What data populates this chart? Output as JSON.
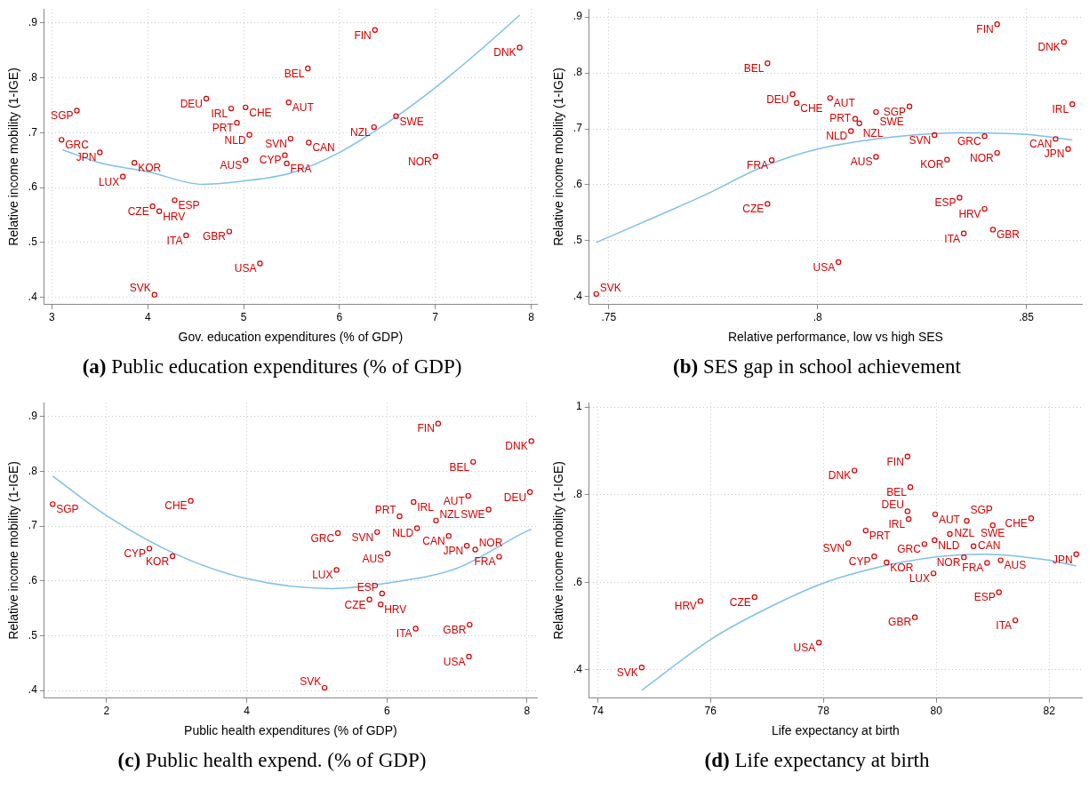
{
  "chart_data": [
    {
      "type": "scatter",
      "title": "(a) Public education expenditures (% of GDP)",
      "xlabel": "Gov. education expenditures (% of GDP)",
      "ylabel": "Relative income mobility (1-IGE)",
      "xlim": [
        2.92,
        8.06
      ],
      "ylim": [
        0.387,
        0.925
      ],
      "xticks": [
        3,
        4,
        5,
        6,
        7,
        8
      ],
      "yticks": [
        {
          "value": 0.4,
          "label": ".4"
        },
        {
          "value": 0.5,
          "label": ".5"
        },
        {
          "value": 0.6,
          "label": ".6"
        },
        {
          "value": 0.7,
          "label": ".7"
        },
        {
          "value": 0.8,
          "label": ".8"
        },
        {
          "value": 0.9,
          "label": ".9"
        }
      ],
      "grid": true,
      "legend": false,
      "marker": "circle",
      "series": [
        {
          "name": "FIN",
          "color": "#d40000",
          "x": [
            6.37
          ],
          "values": [
            0.887
          ]
        },
        {
          "name": "DNK",
          "color": "#d40000",
          "x": [
            7.88
          ],
          "values": [
            0.855
          ]
        },
        {
          "name": "BEL",
          "color": "#d40000",
          "x": [
            5.67
          ],
          "values": [
            0.817
          ]
        },
        {
          "name": "DEU",
          "color": "#d40000",
          "x": [
            4.61
          ],
          "values": [
            0.762
          ]
        },
        {
          "name": "IRL",
          "color": "#d40000",
          "x": [
            4.87
          ],
          "values": [
            0.744
          ]
        },
        {
          "name": "CHE",
          "color": "#d40000",
          "x": [
            5.02
          ],
          "values": [
            0.746
          ]
        },
        {
          "name": "AUT",
          "color": "#d40000",
          "x": [
            5.47
          ],
          "values": [
            0.755
          ]
        },
        {
          "name": "SGP",
          "color": "#d40000",
          "x": [
            3.26
          ],
          "values": [
            0.74
          ]
        },
        {
          "name": "SWE",
          "color": "#d40000",
          "x": [
            6.59
          ],
          "values": [
            0.73
          ]
        },
        {
          "name": "PRT",
          "color": "#d40000",
          "x": [
            4.93
          ],
          "values": [
            0.718
          ]
        },
        {
          "name": "NZL",
          "color": "#d40000",
          "x": [
            6.36
          ],
          "values": [
            0.71
          ]
        },
        {
          "name": "NLD",
          "color": "#d40000",
          "x": [
            5.06
          ],
          "values": [
            0.696
          ]
        },
        {
          "name": "SVN",
          "color": "#d40000",
          "x": [
            5.49
          ],
          "values": [
            0.689
          ]
        },
        {
          "name": "GRC",
          "color": "#d40000",
          "x": [
            3.1
          ],
          "values": [
            0.687
          ]
        },
        {
          "name": "CAN",
          "color": "#d40000",
          "x": [
            5.68
          ],
          "values": [
            0.682
          ]
        },
        {
          "name": "JPN",
          "color": "#d40000",
          "x": [
            3.5
          ],
          "values": [
            0.664
          ]
        },
        {
          "name": "CYP",
          "color": "#d40000",
          "x": [
            5.43
          ],
          "values": [
            0.659
          ]
        },
        {
          "name": "NOR",
          "color": "#d40000",
          "x": [
            7.0
          ],
          "values": [
            0.657
          ]
        },
        {
          "name": "AUS",
          "color": "#d40000",
          "x": [
            5.02
          ],
          "values": [
            0.65
          ]
        },
        {
          "name": "KOR",
          "color": "#d40000",
          "x": [
            3.86
          ],
          "values": [
            0.645
          ]
        },
        {
          "name": "FRA",
          "color": "#d40000",
          "x": [
            5.45
          ],
          "values": [
            0.644
          ]
        },
        {
          "name": "LUX",
          "color": "#d40000",
          "x": [
            3.74
          ],
          "values": [
            0.62
          ]
        },
        {
          "name": "ESP",
          "color": "#d40000",
          "x": [
            4.28
          ],
          "values": [
            0.577
          ]
        },
        {
          "name": "CZE",
          "color": "#d40000",
          "x": [
            4.05
          ],
          "values": [
            0.566
          ]
        },
        {
          "name": "HRV",
          "color": "#d40000",
          "x": [
            4.12
          ],
          "values": [
            0.557
          ]
        },
        {
          "name": "GBR",
          "color": "#d40000",
          "x": [
            4.85
          ],
          "values": [
            0.52
          ]
        },
        {
          "name": "ITA",
          "color": "#d40000",
          "x": [
            4.4
          ],
          "values": [
            0.513
          ]
        },
        {
          "name": "USA",
          "color": "#d40000",
          "x": [
            5.17
          ],
          "values": [
            0.462
          ]
        },
        {
          "name": "SVK",
          "color": "#d40000",
          "x": [
            4.07
          ],
          "values": [
            0.405
          ]
        },
        {
          "type": "line",
          "marker": "none",
          "color": "#7fbfe8",
          "x": [
            3.11,
            3.5,
            4,
            4.57,
            5,
            5.5,
            6,
            6.5,
            7,
            7.5,
            7.88
          ],
          "values": [
            0.669,
            0.645,
            0.629,
            0.606,
            0.612,
            0.627,
            0.664,
            0.718,
            0.782,
            0.855,
            0.914
          ]
        }
      ]
    },
    {
      "type": "scatter",
      "title": "(b) SES gap in school achievement",
      "xlabel": "Relative performance, low vs high SES",
      "ylabel": "Relative income mobility (1-IGE)",
      "xlim": [
        0.7453,
        0.8633
      ],
      "ylim": [
        0.386,
        0.914
      ],
      "xticks": [
        {
          "value": 0.75,
          "label": ".75"
        },
        {
          "value": 0.8,
          "label": ".8"
        },
        {
          "value": 0.85,
          "label": ".85"
        }
      ],
      "yticks": [
        {
          "value": 0.4,
          "label": ".4"
        },
        {
          "value": 0.5,
          "label": ".5"
        },
        {
          "value": 0.6,
          "label": ".6"
        },
        {
          "value": 0.7,
          "label": ".7"
        },
        {
          "value": 0.8,
          "label": ".8"
        },
        {
          "value": 0.9,
          "label": ".9"
        }
      ],
      "grid": true,
      "legend": false,
      "marker": "circle",
      "series": [
        {
          "name": "FIN",
          "color": "#d40000",
          "x": [
            0.843
          ],
          "values": [
            0.887
          ]
        },
        {
          "name": "DNK",
          "color": "#d40000",
          "x": [
            0.859
          ],
          "values": [
            0.855
          ]
        },
        {
          "name": "BEL",
          "color": "#d40000",
          "x": [
            0.788
          ],
          "values": [
            0.817
          ]
        },
        {
          "name": "DEU",
          "color": "#d40000",
          "x": [
            0.794
          ],
          "values": [
            0.762
          ]
        },
        {
          "name": "IRL",
          "color": "#d40000",
          "x": [
            0.861
          ],
          "values": [
            0.744
          ]
        },
        {
          "name": "CHE",
          "color": "#d40000",
          "x": [
            0.795
          ],
          "values": [
            0.746
          ]
        },
        {
          "name": "AUT",
          "color": "#d40000",
          "x": [
            0.803
          ],
          "values": [
            0.755
          ]
        },
        {
          "name": "SGP",
          "color": "#d40000",
          "x": [
            0.822
          ],
          "values": [
            0.74
          ]
        },
        {
          "name": "SWE",
          "color": "#d40000",
          "x": [
            0.814
          ],
          "values": [
            0.73
          ]
        },
        {
          "name": "PRT",
          "color": "#d40000",
          "x": [
            0.809
          ],
          "values": [
            0.718
          ]
        },
        {
          "name": "NZL",
          "color": "#d40000",
          "x": [
            0.81
          ],
          "values": [
            0.71
          ]
        },
        {
          "name": "NLD",
          "color": "#d40000",
          "x": [
            0.808
          ],
          "values": [
            0.696
          ]
        },
        {
          "name": "SVN",
          "color": "#d40000",
          "x": [
            0.828
          ],
          "values": [
            0.689
          ]
        },
        {
          "name": "GRC",
          "color": "#d40000",
          "x": [
            0.84
          ],
          "values": [
            0.687
          ]
        },
        {
          "name": "CAN",
          "color": "#d40000",
          "x": [
            0.857
          ],
          "values": [
            0.682
          ]
        },
        {
          "name": "JPN",
          "color": "#d40000",
          "x": [
            0.86
          ],
          "values": [
            0.664
          ]
        },
        {
          "name": "NOR",
          "color": "#d40000",
          "x": [
            0.843
          ],
          "values": [
            0.657
          ]
        },
        {
          "name": "AUS",
          "color": "#d40000",
          "x": [
            0.814
          ],
          "values": [
            0.65
          ]
        },
        {
          "name": "KOR",
          "color": "#d40000",
          "x": [
            0.831
          ],
          "values": [
            0.645
          ]
        },
        {
          "name": "FRA",
          "color": "#d40000",
          "x": [
            0.789
          ],
          "values": [
            0.644
          ]
        },
        {
          "name": "ESP",
          "color": "#d40000",
          "x": [
            0.834
          ],
          "values": [
            0.577
          ]
        },
        {
          "name": "CZE",
          "color": "#d40000",
          "x": [
            0.788
          ],
          "values": [
            0.566
          ]
        },
        {
          "name": "HRV",
          "color": "#d40000",
          "x": [
            0.84
          ],
          "values": [
            0.557
          ]
        },
        {
          "name": "GBR",
          "color": "#d40000",
          "x": [
            0.842
          ],
          "values": [
            0.52
          ]
        },
        {
          "name": "ITA",
          "color": "#d40000",
          "x": [
            0.835
          ],
          "values": [
            0.513
          ]
        },
        {
          "name": "USA",
          "color": "#d40000",
          "x": [
            0.805
          ],
          "values": [
            0.462
          ]
        },
        {
          "name": "SVK",
          "color": "#d40000",
          "x": [
            0.747
          ],
          "values": [
            0.405
          ]
        },
        {
          "type": "line",
          "marker": "none",
          "color": "#7fbfe8",
          "x": [
            0.747,
            0.7736,
            0.7865,
            0.8,
            0.82,
            0.834,
            0.85,
            0.861
          ],
          "values": [
            0.497,
            0.584,
            0.631,
            0.664,
            0.687,
            0.693,
            0.69,
            0.68
          ]
        }
      ]
    },
    {
      "type": "scatter",
      "title": "(c) Public health expend. (% of GDP)",
      "xlabel": "Public health expenditures (% of GDP)",
      "ylabel": "Relative income mobility (1-IGE)",
      "xlim": [
        1.11,
        8.14
      ],
      "ylim": [
        0.386,
        0.925
      ],
      "xticks": [
        2,
        4,
        6,
        8
      ],
      "yticks": [
        {
          "value": 0.4,
          "label": ".4"
        },
        {
          "value": 0.5,
          "label": ".5"
        },
        {
          "value": 0.6,
          "label": ".6"
        },
        {
          "value": 0.7,
          "label": ".7"
        },
        {
          "value": 0.8,
          "label": ".8"
        },
        {
          "value": 0.9,
          "label": ".9"
        }
      ],
      "grid": true,
      "legend": false,
      "marker": "circle",
      "series": [
        {
          "name": "FIN",
          "color": "#d40000",
          "x": [
            6.73
          ],
          "values": [
            0.887
          ]
        },
        {
          "name": "DNK",
          "color": "#d40000",
          "x": [
            8.06
          ],
          "values": [
            0.855
          ]
        },
        {
          "name": "BEL",
          "color": "#d40000",
          "x": [
            7.23
          ],
          "values": [
            0.817
          ]
        },
        {
          "name": "DEU",
          "color": "#d40000",
          "x": [
            8.04
          ],
          "values": [
            0.762
          ]
        },
        {
          "name": "IRL",
          "color": "#d40000",
          "x": [
            6.38
          ],
          "values": [
            0.744
          ]
        },
        {
          "name": "CHE",
          "color": "#d40000",
          "x": [
            3.2
          ],
          "values": [
            0.746
          ]
        },
        {
          "name": "AUT",
          "color": "#d40000",
          "x": [
            7.16
          ],
          "values": [
            0.755
          ]
        },
        {
          "name": "SGP",
          "color": "#d40000",
          "x": [
            1.23
          ],
          "values": [
            0.74
          ]
        },
        {
          "name": "SWE",
          "color": "#d40000",
          "x": [
            7.45
          ],
          "values": [
            0.73
          ]
        },
        {
          "name": "PRT",
          "color": "#d40000",
          "x": [
            6.18
          ],
          "values": [
            0.718
          ]
        },
        {
          "name": "NZL",
          "color": "#d40000",
          "x": [
            6.7
          ],
          "values": [
            0.71
          ]
        },
        {
          "name": "NLD",
          "color": "#d40000",
          "x": [
            6.43
          ],
          "values": [
            0.696
          ]
        },
        {
          "name": "SVN",
          "color": "#d40000",
          "x": [
            5.86
          ],
          "values": [
            0.689
          ]
        },
        {
          "name": "GRC",
          "color": "#d40000",
          "x": [
            5.3
          ],
          "values": [
            0.687
          ]
        },
        {
          "name": "CAN",
          "color": "#d40000",
          "x": [
            6.88
          ],
          "values": [
            0.682
          ]
        },
        {
          "name": "JPN",
          "color": "#d40000",
          "x": [
            7.14
          ],
          "values": [
            0.664
          ]
        },
        {
          "name": "CYP",
          "color": "#d40000",
          "x": [
            2.61
          ],
          "values": [
            0.659
          ]
        },
        {
          "name": "NOR",
          "color": "#d40000",
          "x": [
            7.26
          ],
          "values": [
            0.657
          ]
        },
        {
          "name": "AUS",
          "color": "#d40000",
          "x": [
            6.01
          ],
          "values": [
            0.65
          ]
        },
        {
          "name": "KOR",
          "color": "#d40000",
          "x": [
            2.94
          ],
          "values": [
            0.645
          ]
        },
        {
          "name": "FRA",
          "color": "#d40000",
          "x": [
            7.6
          ],
          "values": [
            0.644
          ]
        },
        {
          "name": "LUX",
          "color": "#d40000",
          "x": [
            5.28
          ],
          "values": [
            0.62
          ]
        },
        {
          "name": "ESP",
          "color": "#d40000",
          "x": [
            5.93
          ],
          "values": [
            0.577
          ]
        },
        {
          "name": "CZE",
          "color": "#d40000",
          "x": [
            5.75
          ],
          "values": [
            0.566
          ]
        },
        {
          "name": "HRV",
          "color": "#d40000",
          "x": [
            5.91
          ],
          "values": [
            0.557
          ]
        },
        {
          "name": "GBR",
          "color": "#d40000",
          "x": [
            7.18
          ],
          "values": [
            0.52
          ]
        },
        {
          "name": "ITA",
          "color": "#d40000",
          "x": [
            6.41
          ],
          "values": [
            0.513
          ]
        },
        {
          "name": "USA",
          "color": "#d40000",
          "x": [
            7.17
          ],
          "values": [
            0.462
          ]
        },
        {
          "name": "SVK",
          "color": "#d40000",
          "x": [
            5.11
          ],
          "values": [
            0.405
          ]
        },
        {
          "type": "line",
          "marker": "none",
          "color": "#7fbfe8",
          "x": [
            1.23,
            2,
            3,
            4,
            5.21,
            6,
            7,
            8,
            8.06
          ],
          "values": [
            0.791,
            0.719,
            0.648,
            0.604,
            0.586,
            0.596,
            0.623,
            0.691,
            0.694
          ]
        }
      ]
    },
    {
      "type": "scatter",
      "title": "(d) Life expectancy at birth",
      "xlabel": "Life expectancy at birth",
      "ylabel": "Relative income mobility (1-IGE)",
      "xlim": [
        73.85,
        82.58
      ],
      "ylim": [
        0.335,
        1.01
      ],
      "xticks": [
        74,
        76,
        78,
        80,
        82
      ],
      "yticks": [
        {
          "value": 0.4,
          "label": ".4"
        },
        {
          "value": 0.6,
          "label": ".6"
        },
        {
          "value": 0.8,
          "label": ".8"
        },
        1
      ],
      "grid": true,
      "legend": false,
      "marker": "circle",
      "series": [
        {
          "name": "FIN",
          "color": "#d40000",
          "x": [
            79.49
          ],
          "values": [
            0.887
          ]
        },
        {
          "name": "DNK",
          "color": "#d40000",
          "x": [
            78.55
          ],
          "values": [
            0.855
          ]
        },
        {
          "name": "BEL",
          "color": "#d40000",
          "x": [
            79.54
          ],
          "values": [
            0.817
          ]
        },
        {
          "name": "DEU",
          "color": "#d40000",
          "x": [
            79.49
          ],
          "values": [
            0.762
          ]
        },
        {
          "name": "IRL",
          "color": "#d40000",
          "x": [
            79.51
          ],
          "values": [
            0.744
          ]
        },
        {
          "name": "CHE",
          "color": "#d40000",
          "x": [
            81.68
          ],
          "values": [
            0.746
          ]
        },
        {
          "name": "AUT",
          "color": "#d40000",
          "x": [
            79.98
          ],
          "values": [
            0.755
          ]
        },
        {
          "name": "SGP",
          "color": "#d40000",
          "x": [
            80.54
          ],
          "values": [
            0.74
          ]
        },
        {
          "name": "SWE",
          "color": "#d40000",
          "x": [
            81.0
          ],
          "values": [
            0.73
          ]
        },
        {
          "name": "PRT",
          "color": "#d40000",
          "x": [
            78.75
          ],
          "values": [
            0.718
          ]
        },
        {
          "name": "NZL",
          "color": "#d40000",
          "x": [
            80.24
          ],
          "values": [
            0.71
          ]
        },
        {
          "name": "NLD",
          "color": "#d40000",
          "x": [
            79.97
          ],
          "values": [
            0.696
          ]
        },
        {
          "name": "SVN",
          "color": "#d40000",
          "x": [
            78.44
          ],
          "values": [
            0.689
          ]
        },
        {
          "name": "GRC",
          "color": "#d40000",
          "x": [
            79.79
          ],
          "values": [
            0.687
          ]
        },
        {
          "name": "CAN",
          "color": "#d40000",
          "x": [
            80.66
          ],
          "values": [
            0.682
          ]
        },
        {
          "name": "JPN",
          "color": "#d40000",
          "x": [
            82.48
          ],
          "values": [
            0.664
          ]
        },
        {
          "name": "CYP",
          "color": "#d40000",
          "x": [
            78.9
          ],
          "values": [
            0.659
          ]
        },
        {
          "name": "NOR",
          "color": "#d40000",
          "x": [
            80.49
          ],
          "values": [
            0.657
          ]
        },
        {
          "name": "AUS",
          "color": "#d40000",
          "x": [
            81.14
          ],
          "values": [
            0.65
          ]
        },
        {
          "name": "KOR",
          "color": "#d40000",
          "x": [
            79.12
          ],
          "values": [
            0.645
          ]
        },
        {
          "name": "FRA",
          "color": "#d40000",
          "x": [
            80.9
          ],
          "values": [
            0.644
          ]
        },
        {
          "name": "LUX",
          "color": "#d40000",
          "x": [
            79.95
          ],
          "values": [
            0.62
          ]
        },
        {
          "name": "ESP",
          "color": "#d40000",
          "x": [
            81.11
          ],
          "values": [
            0.577
          ]
        },
        {
          "name": "CZE",
          "color": "#d40000",
          "x": [
            76.78
          ],
          "values": [
            0.566
          ]
        },
        {
          "name": "HRV",
          "color": "#d40000",
          "x": [
            75.82
          ],
          "values": [
            0.557
          ]
        },
        {
          "name": "GBR",
          "color": "#d40000",
          "x": [
            79.62
          ],
          "values": [
            0.52
          ]
        },
        {
          "name": "ITA",
          "color": "#d40000",
          "x": [
            81.4
          ],
          "values": [
            0.513
          ]
        },
        {
          "name": "USA",
          "color": "#d40000",
          "x": [
            77.92
          ],
          "values": [
            0.462
          ]
        },
        {
          "name": "SVK",
          "color": "#d40000",
          "x": [
            74.78
          ],
          "values": [
            0.405
          ]
        },
        {
          "type": "line",
          "marker": "none",
          "color": "#7fbfe8",
          "x": [
            74.78,
            76,
            77,
            78,
            79,
            80,
            80.85,
            82,
            82.48
          ],
          "values": [
            0.353,
            0.469,
            0.54,
            0.598,
            0.635,
            0.658,
            0.664,
            0.65,
            0.637
          ]
        }
      ]
    }
  ]
}
